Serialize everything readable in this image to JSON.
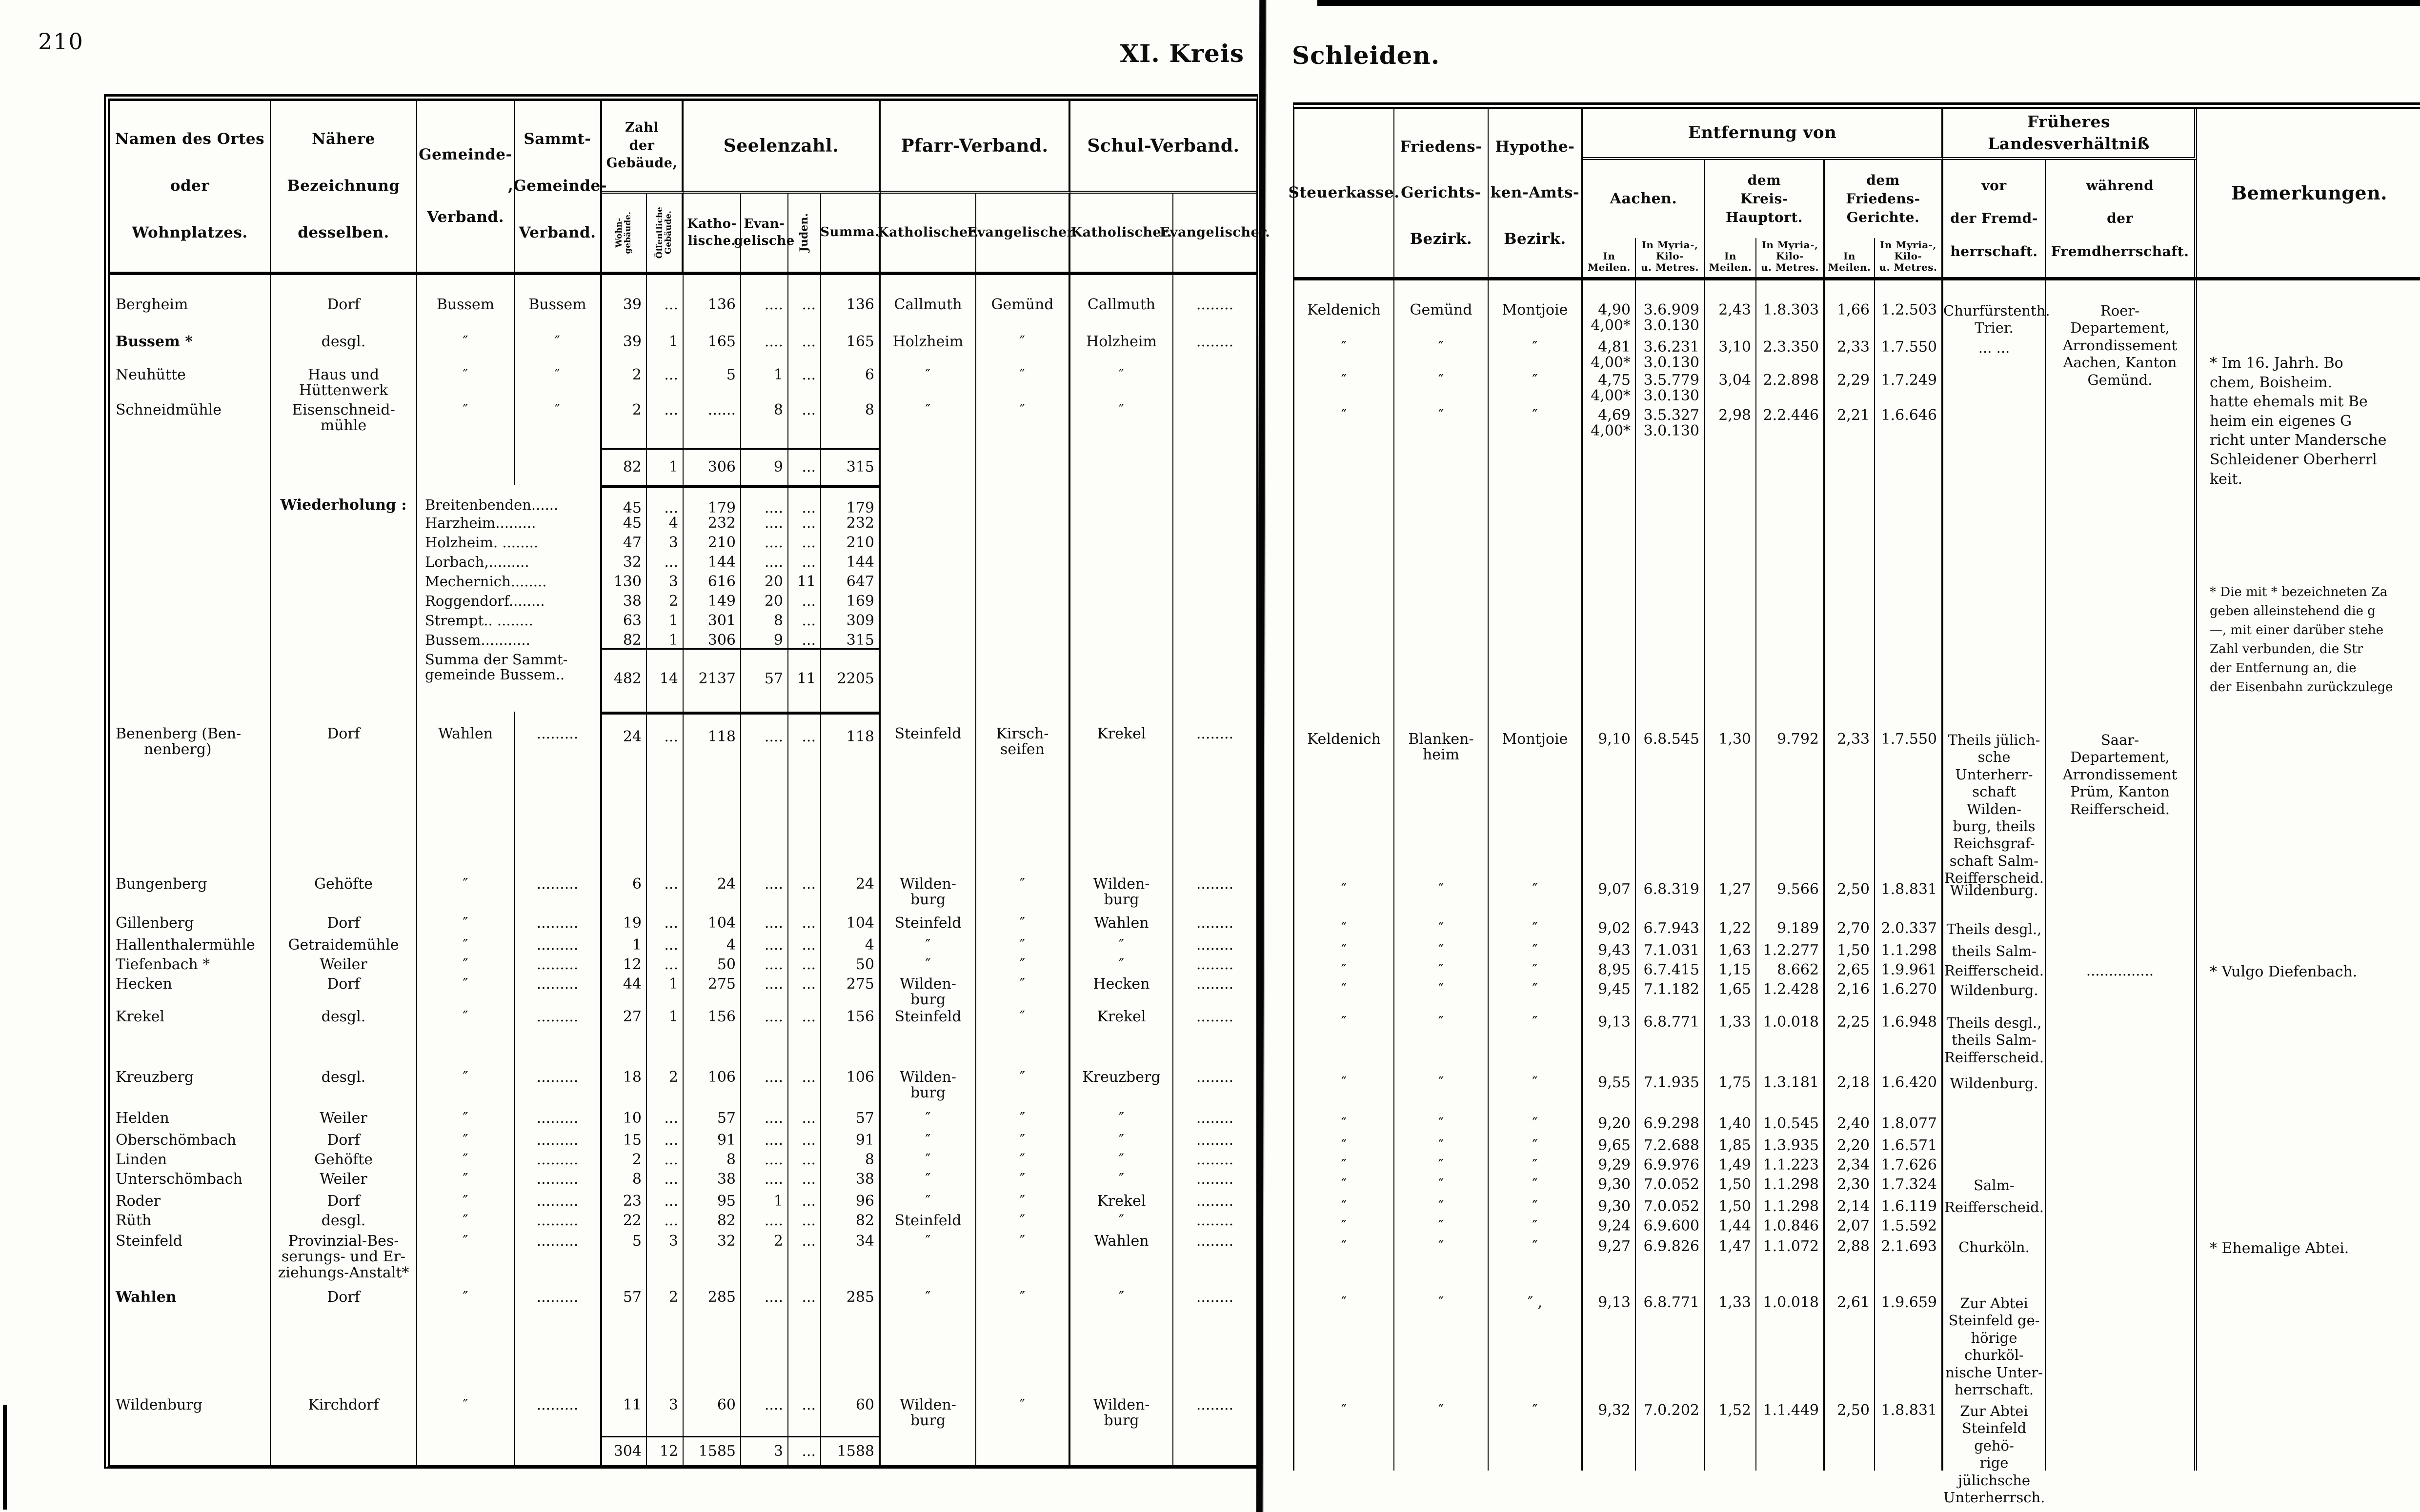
{
  "page": {
    "number": "210",
    "kreis_title": "XI. Kreis",
    "kreis_name": "Schleiden."
  },
  "headers": {
    "left": {
      "namen": [
        "Namen des Ortes",
        "oder",
        "Wohnplatzes."
      ],
      "bezeichnung": [
        "Nähere",
        "Bezeichnung",
        "desselben."
      ],
      "gemeinde": [
        "Gemeinde-",
        "Verband."
      ],
      "sammt": [
        "Sammt-",
        ",Gemeinde-",
        "Verband."
      ],
      "zahl": [
        "Zahl",
        "der",
        "Gebäude,"
      ],
      "wohn": [
        "Wohn-",
        "gebäude."
      ],
      "oeff": [
        "Öffentliche",
        "Gebäude."
      ],
      "seelen": "Seelenzahl.",
      "kath": [
        "Katho-",
        "lische."
      ],
      "evang": [
        "Evan-",
        "gelische"
      ],
      "juden": [
        "Juden."
      ],
      "summa": "Summa.",
      "pfarr": "Pfarr-Verband.",
      "pfarr_k": "Katholischer.",
      "pfarr_e": "Evangelischer.",
      "schul": "Schul-Verband.",
      "schul_k": "Katholischer.",
      "schul_e": "Evangelischer."
    },
    "right": {
      "steuer": "Steuerkasse.",
      "gericht": [
        "Friedens-",
        "Gerichts-",
        "Bezirk."
      ],
      "hypo": [
        "Hypothe-",
        "ken-Amts-",
        "Bezirk."
      ],
      "entfernung": "Entfernung von",
      "aachen": "Aachen.",
      "kreis": [
        "dem",
        "Kreis-",
        "Hauptort."
      ],
      "fried": [
        "dem",
        "Friedens-",
        "Gerichte."
      ],
      "meilen": [
        "In",
        "Meilen."
      ],
      "myria": [
        "In Myria-,",
        "Kilo-",
        "u. Metres."
      ],
      "frueheres": "Früheres Landesverhältniß",
      "vor": [
        "vor",
        "der Fremd-",
        "herrschaft."
      ],
      "waehrend": [
        "während",
        "der",
        "Fremdherrschaft."
      ],
      "bemerkungen": "Bemerkungen."
    }
  },
  "table": {
    "rows": [
      {
        "n": "Bergheim",
        "bez": [
          "Dorf"
        ],
        "gem": "Bussem",
        "sammt": "Bussem",
        "w": "39",
        "o": "...",
        "k": "136",
        "e": "....",
        "j": "...",
        "s": "136",
        "pk": "Callmuth",
        "pe": "Gemünd",
        "sk": "Callmuth",
        "se": "........",
        "st": "Keldenich",
        "fg": "Gemünd",
        "hy": "Montjoie",
        "am": [
          "4,90",
          "4,00*"
        ],
        "ak": [
          "3.6.909",
          "3.0.130"
        ],
        "km": "2,43",
        "kk": "1.8.303",
        "fm": "1,66",
        "fk": "1.2.503",
        "vor": [
          "Churfürstenth.",
          "Trier."
        ],
        "wae": [
          "Roer-",
          "Departement,",
          "Arrondissement",
          "Aachen, Kanton",
          "Gemünd."
        ],
        "bem": [
          "* Im 16. Jahrh. Bo",
          "chem, Boisheim.",
          "hatte ehemals mit Be",
          "heim ein eigenes G",
          "richt unter Mandersche",
          "Schleidener Oberherrl",
          "keit."
        ]
      },
      {
        "n": "Bussem *",
        "nb": 1,
        "bez": [
          "desgl."
        ],
        "gem": "″",
        "sammt": "″",
        "w": "39",
        "o": "1",
        "k": "165",
        "e": "....",
        "j": "...",
        "s": "165",
        "pk": "Holzheim",
        "pe": "″",
        "sk": "Holzheim",
        "se": "........",
        "st": "″",
        "fg": "″",
        "hy": "″",
        "am": [
          "4,81",
          "4,00*"
        ],
        "ak": [
          "3.6.231",
          "3.0.130"
        ],
        "km": "3,10",
        "kk": "2.3.350",
        "fm": "2,33",
        "fk": "1.7.550",
        "vor": [
          "... ..."
        ]
      },
      {
        "n": "Neuhütte",
        "bez": [
          "Haus und",
          "Hüttenwerk"
        ],
        "gem": "″",
        "sammt": "″",
        "w": "2",
        "o": "...",
        "k": "5",
        "e": "1",
        "j": "...",
        "s": "6",
        "pk": "″",
        "pe": "″",
        "sk": "″",
        "st": "″",
        "fg": "″",
        "hy": "″",
        "am": [
          "4,75",
          "4,00*"
        ],
        "ak": [
          "3.5.779",
          "3.0.130"
        ],
        "km": "3,04",
        "kk": "2.2.898",
        "fm": "2,29",
        "fk": "1.7.249"
      },
      {
        "n": "Schneidmühle",
        "bez": [
          "Eisenschneid-",
          "mühle"
        ],
        "gem": "″",
        "sammt": "″",
        "w": "2",
        "o": "...",
        "k": "......",
        "e": "8",
        "j": "...",
        "s": "8",
        "pk": "″",
        "pe": "″",
        "sk": "″",
        "st": "″",
        "fg": "″",
        "hy": "″",
        "am": [
          "4,69",
          "4,00*"
        ],
        "ak": [
          "3.5.327",
          "3.0.130"
        ],
        "km": "2,98",
        "kk": "2.2.446",
        "fm": "2,21",
        "fk": "1.6.646"
      },
      {
        "rule": 1,
        "w": "82",
        "o": "1",
        "k": "306",
        "e": "9",
        "j": "...",
        "s": "315"
      },
      {
        "bez": [
          "Wiederholung :"
        ],
        "bezb": 1,
        "gs": [
          "Breitenbenden......"
        ],
        "w": "45",
        "o": "...",
        "k": "179",
        "e": "....",
        "j": "...",
        "s": "179",
        "rule2": 1,
        "bem": [
          "* Die mit * bezeichneten Za",
          "geben alleinstehend die g",
          "—, mit einer darüber stehe",
          "Zahl verbunden, die Str",
          "der Entfernung an, die",
          "der Eisenbahn zurückzulege"
        ]
      },
      {
        "gs": [
          "Harzheim........."
        ],
        "w": "45",
        "o": "4",
        "k": "232",
        "e": "....",
        "j": "...",
        "s": "232"
      },
      {
        "gs": [
          "Holzheim. ........"
        ],
        "w": "47",
        "o": "3",
        "k": "210",
        "e": "....",
        "j": "...",
        "s": "210"
      },
      {
        "gs": [
          "Lorbach,........."
        ],
        "w": "32",
        "o": "...",
        "k": "144",
        "e": "....",
        "j": "...",
        "s": "144"
      },
      {
        "gs": [
          "Mechernich........"
        ],
        "w": "130",
        "o": "3",
        "k": "616",
        "e": "20",
        "j": "11",
        "s": "647"
      },
      {
        "gs": [
          "Roggendorf........"
        ],
        "w": "38",
        "o": "2",
        "k": "149",
        "e": "20",
        "j": "...",
        "s": "169"
      },
      {
        "gs": [
          "Strempt.. ........"
        ],
        "w": "63",
        "o": "1",
        "k": "301",
        "e": "8",
        "j": "...",
        "s": "309"
      },
      {
        "gs": [
          "Bussem..........."
        ],
        "w": "82",
        "o": "1",
        "k": "306",
        "e": "9",
        "j": "...",
        "s": "315"
      },
      {
        "gs": [
          "Summa der Sammt-",
          "gemeinde Bussem.."
        ],
        "w": "482",
        "o": "14",
        "k": "2137",
        "e": "57",
        "j": "11",
        "s": "2205",
        "rule": 1
      },
      {
        "n": [
          "Benenberg  (Ben-",
          "nenberg)"
        ],
        "bez": [
          "Dorf"
        ],
        "gem": "Wahlen",
        "sammt": ".........",
        "w": "24",
        "o": "...",
        "k": "118",
        "e": "....",
        "j": "...",
        "s": "118",
        "pk": "Steinfeld",
        "pe": [
          "Kirsch-",
          "seifen"
        ],
        "sk": "Krekel",
        "se": "........",
        "st": "Keldenich",
        "fg": [
          "Blanken-",
          "heim"
        ],
        "hy": "Montjoie",
        "am": "9,10",
        "ak": "6.8.545",
        "km": "1,30",
        "kk": "9.792",
        "fm": "2,33",
        "fk": "1.7.550",
        "vor": [
          "Theils jülich-",
          "sche Unterherr-",
          "schaft Wilden-",
          "burg, theils",
          "Reichsgraf-",
          "schaft Salm-",
          "Reifferscheid."
        ],
        "wae": [
          "Saar-",
          "Departement,",
          "Arrondissement",
          "Prüm, Kanton",
          "Reifferscheid."
        ],
        "rule2": 1
      },
      {
        "n": "Bungenberg",
        "bez": [
          "Gehöfte"
        ],
        "gem": "″",
        "sammt": ".........",
        "w": "6",
        "o": "...",
        "k": "24",
        "e": "....",
        "j": "...",
        "s": "24",
        "pk": [
          "Wilden-",
          "burg"
        ],
        "pe": "″",
        "sk": [
          "Wilden-",
          "burg"
        ],
        "se": "........",
        "st": "″",
        "fg": "″",
        "hy": "″",
        "am": "9,07",
        "ak": "6.8.319",
        "km": "1,27",
        "kk": "9.566",
        "fm": "2,50",
        "fk": "1.8.831",
        "vor": [
          "Wildenburg."
        ]
      },
      {
        "n": "Gillenberg",
        "bez": [
          "Dorf"
        ],
        "gem": "″",
        "sammt": ".........",
        "w": "19",
        "o": "...",
        "k": "104",
        "e": "....",
        "j": "...",
        "s": "104",
        "pk": "Steinfeld",
        "pe": "″",
        "sk": "Wahlen",
        "se": "........",
        "st": "″",
        "fg": "″",
        "hy": "″",
        "am": "9,02",
        "ak": "6.7.943",
        "km": "1,22",
        "kk": "9.189",
        "fm": "2,70",
        "fk": "2.0.337",
        "vor": [
          "Theils desgl.,"
        ]
      },
      {
        "n": "Hallenthalermühle",
        "bez": [
          "Getraidemühle"
        ],
        "gem": "″",
        "sammt": ".........",
        "w": "1",
        "o": "...",
        "k": "4",
        "e": "....",
        "j": "...",
        "s": "4",
        "pk": "″",
        "pe": "″",
        "sk": "″",
        "se": "........",
        "st": "″",
        "fg": "″",
        "hy": "″",
        "am": "9,43",
        "ak": "7.1.031",
        "km": "1,63",
        "kk": "1.2.277",
        "fm": "1,50",
        "fk": "1.1.298",
        "vor": [
          "theils Salm-"
        ]
      },
      {
        "n": "Tiefenbach *",
        "bez": [
          "Weiler"
        ],
        "gem": "″",
        "sammt": ".........",
        "w": "12",
        "o": "...",
        "k": "50",
        "e": "....",
        "j": "...",
        "s": "50",
        "pk": "″",
        "pe": "″",
        "sk": "″",
        "se": "........",
        "st": "″",
        "fg": "″",
        "hy": "″",
        "am": "8,95",
        "ak": "6.7.415",
        "km": "1,15",
        "kk": "8.662",
        "fm": "2,65",
        "fk": "1.9.961",
        "vor": [
          "Reifferscheid."
        ],
        "wae": [
          "..............."
        ],
        "bem": [
          "* Vulgo Diefenbach."
        ]
      },
      {
        "n": "Hecken",
        "bez": [
          "Dorf"
        ],
        "gem": "″",
        "sammt": ".........",
        "w": "44",
        "o": "1",
        "k": "275",
        "e": "....",
        "j": "...",
        "s": "275",
        "pk": [
          "Wilden-",
          "burg"
        ],
        "pe": "″",
        "sk": "Hecken",
        "se": "........",
        "st": "″",
        "fg": "″",
        "hy": "″",
        "am": "9,45",
        "ak": "7.1.182",
        "km": "1,65",
        "kk": "1.2.428",
        "fm": "2,16",
        "fk": "1.6.270",
        "vor": [
          "Wildenburg."
        ]
      },
      {
        "n": "Krekel",
        "bez": [
          "desgl."
        ],
        "gem": "″",
        "sammt": ".........",
        "w": "27",
        "o": "1",
        "k": "156",
        "e": "....",
        "j": "...",
        "s": "156",
        "pk": "Steinfeld",
        "pe": "″",
        "sk": "Krekel",
        "se": "........",
        "st": "″",
        "fg": "″",
        "hy": "″",
        "am": "9,13",
        "ak": "6.8.771",
        "km": "1,33",
        "kk": "1.0.018",
        "fm": "2,25",
        "fk": "1.6.948",
        "vor": [
          "Theils desgl.,",
          "theils Salm-",
          "Reifferscheid."
        ]
      },
      {
        "n": "Kreuzberg",
        "bez": [
          "desgl."
        ],
        "gem": "″",
        "sammt": ".........",
        "w": "18",
        "o": "2",
        "k": "106",
        "e": "....",
        "j": "...",
        "s": "106",
        "pk": [
          "Wilden-",
          "burg"
        ],
        "pe": "″",
        "sk": "Kreuzberg",
        "se": "........",
        "st": "″",
        "fg": "″",
        "hy": "″",
        "am": "9,55",
        "ak": "7.1.935",
        "km": "1,75",
        "kk": "1.3.181",
        "fm": "2,18",
        "fk": "1.6.420",
        "vor": [
          "Wildenburg."
        ]
      },
      {
        "n": "Helden",
        "bez": [
          "Weiler"
        ],
        "gem": "″",
        "sammt": ".........",
        "w": "10",
        "o": "...",
        "k": "57",
        "e": "....",
        "j": "...",
        "s": "57",
        "pk": "″",
        "pe": "″",
        "sk": "″",
        "se": "........",
        "st": "″",
        "fg": "″",
        "hy": "″",
        "am": "9,20",
        "ak": "6.9.298",
        "km": "1,40",
        "kk": "1.0.545",
        "fm": "2,40",
        "fk": "1.8.077"
      },
      {
        "n": "Oberschömbach",
        "bez": [
          "Dorf"
        ],
        "gem": "″",
        "sammt": ".........",
        "w": "15",
        "o": "...",
        "k": "91",
        "e": "....",
        "j": "...",
        "s": "91",
        "pk": "″",
        "pe": "″",
        "sk": "″",
        "se": "........",
        "st": "″",
        "fg": "″",
        "hy": "″",
        "am": "9,65",
        "ak": "7.2.688",
        "km": "1,85",
        "kk": "1.3.935",
        "fm": "2,20",
        "fk": "1.6.571"
      },
      {
        "n": "Linden",
        "bez": [
          "Gehöfte"
        ],
        "gem": "″",
        "sammt": ".........",
        "w": "2",
        "o": "...",
        "k": "8",
        "e": "....",
        "j": "...",
        "s": "8",
        "pk": "″",
        "pe": "″",
        "sk": "″",
        "se": "........",
        "st": "″",
        "fg": "″",
        "hy": "″",
        "am": "9,29",
        "ak": "6.9.976",
        "km": "1,49",
        "kk": "1.1.223",
        "fm": "2,34",
        "fk": "1.7.626"
      },
      {
        "n": "Unterschömbach",
        "bez": [
          "Weiler"
        ],
        "gem": "″",
        "sammt": ".........",
        "w": "8",
        "o": "...",
        "k": "38",
        "e": "....",
        "j": "...",
        "s": "38",
        "pk": "″",
        "pe": "″",
        "sk": "″",
        "se": "........",
        "st": "″",
        "fg": "″",
        "hy": "″",
        "am": "9,30",
        "ak": "7.0.052",
        "km": "1,50",
        "kk": "1.1.298",
        "fm": "2,30",
        "fk": "1.7.324",
        "vor": [
          "Salm-"
        ]
      },
      {
        "n": "Roder",
        "bez": [
          "Dorf"
        ],
        "gem": "″",
        "sammt": ".........",
        "w": "23",
        "o": "...",
        "k": "95",
        "e": "1",
        "j": "...",
        "s": "96",
        "pk": "″",
        "pe": "″",
        "sk": "Krekel",
        "se": "........",
        "st": "″",
        "fg": "″",
        "hy": "″",
        "am": "9,30",
        "ak": "7.0.052",
        "km": "1,50",
        "kk": "1.1.298",
        "fm": "2,14",
        "fk": "1.6.119",
        "vor": [
          "Reifferscheid."
        ]
      },
      {
        "n": "Rüth",
        "bez": [
          "desgl."
        ],
        "gem": "″",
        "sammt": ".........",
        "w": "22",
        "o": "...",
        "k": "82",
        "e": "....",
        "j": "...",
        "s": "82",
        "pk": "Steinfeld",
        "pe": "″",
        "sk": "″",
        "se": "........",
        "st": "″",
        "fg": "″",
        "hy": "″",
        "am": "9,24",
        "ak": "6.9.600",
        "km": "1,44",
        "kk": "1.0.846",
        "fm": "2,07",
        "fk": "1.5.592"
      },
      {
        "n": "Steinfeld",
        "bez": [
          "Provinzial-Bes-",
          "serungs- und Er-",
          "ziehungs-Anstalt*"
        ],
        "gem": "″",
        "sammt": ".........",
        "w": "5",
        "o": "3",
        "k": "32",
        "e": "2",
        "j": "...",
        "s": "34",
        "pk": "″",
        "pe": "″",
        "sk": "Wahlen",
        "se": "........",
        "st": "″",
        "fg": "″",
        "hy": "″",
        "am": "9,27",
        "ak": "6.9.826",
        "km": "1,47",
        "kk": "1.1.072",
        "fm": "2,88",
        "fk": "2.1.693",
        "vor": [
          "Churköln."
        ],
        "bem": [
          "* Ehemalige Abtei."
        ]
      },
      {
        "n": "Wahlen",
        "nb": 1,
        "bez": [
          "Dorf"
        ],
        "gem": "″",
        "sammt": ".........",
        "w": "57",
        "o": "2",
        "k": "285",
        "e": "....",
        "j": "...",
        "s": "285",
        "pk": "″",
        "pe": "″",
        "sk": "″",
        "se": "........",
        "st": "″",
        "fg": "″",
        "hy": "″ ,",
        "am": "9,13",
        "ak": "6.8.771",
        "km": "1,33",
        "kk": "1.0.018",
        "fm": "2,61",
        "fk": "1.9.659",
        "vor": [
          "Zur Abtei",
          "Steinfeld ge-",
          "hörige churköl-",
          "nische Unter-",
          "herrschaft."
        ]
      },
      {
        "n": "Wildenburg",
        "bez": [
          "Kirchdorf"
        ],
        "gem": "″",
        "sammt": ".........",
        "w": "11",
        "o": "3",
        "k": "60",
        "e": "....",
        "j": "...",
        "s": "60",
        "pk": [
          "Wilden-",
          "burg"
        ],
        "pe": "″",
        "sk": [
          "Wilden-",
          "burg"
        ],
        "se": "........",
        "st": "″",
        "fg": "″",
        "hy": "″",
        "am": "9,32",
        "ak": "7.0.202",
        "km": "1,52",
        "kk": "1.1.449",
        "fm": "2,50",
        "fk": "1.8.831",
        "vor": [
          "Zur Abtei",
          "Steinfeld gehö-",
          "rige jülichsche",
          "Unterherrsch."
        ]
      },
      {
        "rule": 1,
        "w": "304",
        "o": "12",
        "k": "1585",
        "e": "3",
        "j": "...",
        "s": "1588"
      }
    ]
  }
}
